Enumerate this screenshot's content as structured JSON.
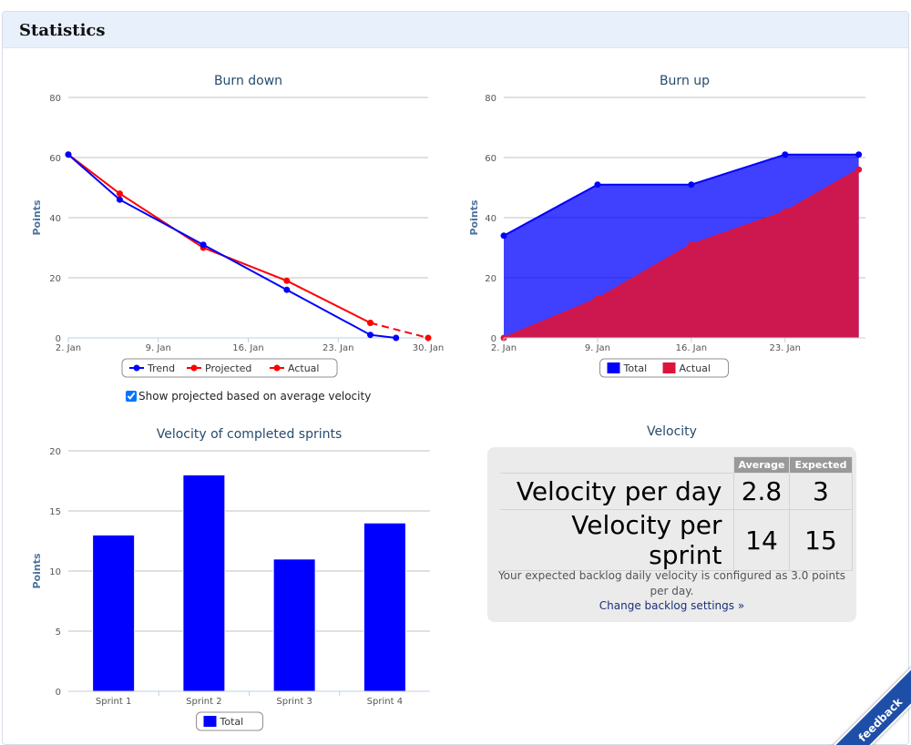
{
  "panel": {
    "title": "Statistics"
  },
  "burndown": {
    "chart_data": {
      "type": "line",
      "title": "Burn down",
      "ylabel": "Points",
      "ylim": [
        0,
        80
      ],
      "y_ticks": [
        "0",
        "20",
        "40",
        "60",
        "80"
      ],
      "x_ticks": [
        "2. Jan",
        "9. Jan",
        "16. Jan",
        "23. Jan",
        "30. Jan"
      ],
      "x_range_days": [
        0,
        28
      ],
      "series": [
        {
          "name": "Trend",
          "color": "#0000ff",
          "points": [
            [
              0,
              61
            ],
            [
              4,
              46
            ],
            [
              10.5,
              31
            ],
            [
              17,
              16
            ],
            [
              23.5,
              1
            ],
            [
              25.5,
              0
            ]
          ]
        },
        {
          "name": "Projected",
          "color": "#ff0000",
          "dashed": true,
          "points": [
            [
              23.5,
              5
            ],
            [
              28,
              0
            ]
          ]
        },
        {
          "name": "Actual",
          "color": "#ff0000",
          "points": [
            [
              0,
              61
            ],
            [
              4,
              48
            ],
            [
              10.5,
              30
            ],
            [
              17,
              19
            ],
            [
              23.5,
              5
            ]
          ]
        }
      ],
      "legend": "bottom"
    }
  },
  "burnup": {
    "chart_data": {
      "type": "area",
      "title": "Burn up",
      "ylabel": "Points",
      "ylim": [
        0,
        80
      ],
      "y_ticks": [
        "0",
        "20",
        "40",
        "60",
        "80"
      ],
      "x_ticks": [
        "2. Jan",
        "9. Jan",
        "16. Jan",
        "23. Jan"
      ],
      "x_range_days": [
        0,
        27
      ],
      "series": [
        {
          "name": "Total",
          "color": "#0000ff",
          "points": [
            [
              0,
              34
            ],
            [
              7,
              51
            ],
            [
              14,
              51
            ],
            [
              21,
              61
            ],
            [
              26.5,
              61
            ]
          ]
        },
        {
          "name": "Actual",
          "color": "#dc143c",
          "points": [
            [
              0,
              0
            ],
            [
              7,
              13
            ],
            [
              14,
              31
            ],
            [
              21,
              42
            ],
            [
              26.5,
              56
            ]
          ]
        }
      ],
      "legend": "bottom"
    }
  },
  "checkbox": {
    "label": "Show projected based on average velocity",
    "checked": true
  },
  "velocity_chart": {
    "chart_data": {
      "type": "bar",
      "title": "Velocity of completed sprints",
      "ylabel": "Points",
      "ylim": [
        0,
        20
      ],
      "y_ticks": [
        "0",
        "5",
        "10",
        "15",
        "20"
      ],
      "categories": [
        "Sprint 1",
        "Sprint 2",
        "Sprint 3",
        "Sprint 4"
      ],
      "series": [
        {
          "name": "Total",
          "color": "#0000ff",
          "values": [
            13,
            18,
            11,
            14
          ]
        }
      ],
      "legend": "bottom"
    }
  },
  "velocity": {
    "title": "Velocity",
    "headers": [
      "Average",
      "Expected"
    ],
    "rows": [
      {
        "label": "Velocity per day",
        "average": "2.8",
        "expected": "3"
      },
      {
        "label": "Velocity per sprint",
        "average": "14",
        "expected": "15"
      }
    ],
    "note": "Your expected backlog daily velocity is configured as 3.0 points per day.",
    "link": "Change backlog settings »"
  },
  "feedback": {
    "label": "feedback"
  }
}
